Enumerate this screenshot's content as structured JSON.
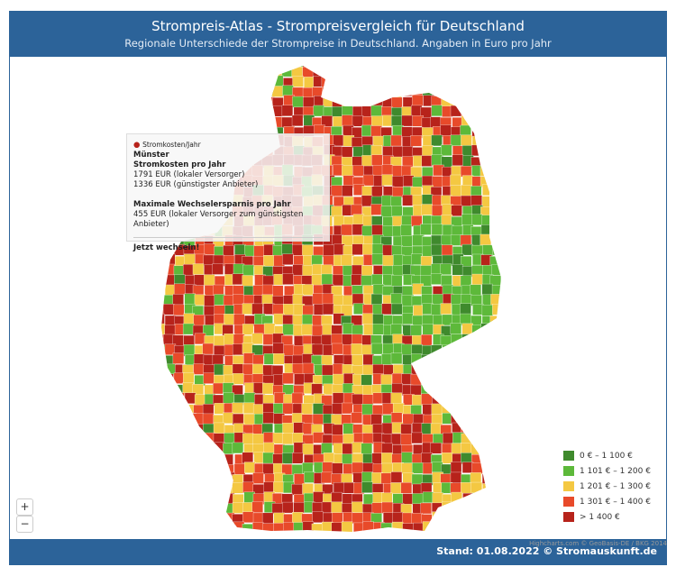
{
  "header": {
    "title": "Strompreis-Atlas - Strompreisvergleich für Deutschland",
    "subtitle": "Regionale Unterschiede der Strompreise in Deutschland. Angaben in Euro pro Jahr"
  },
  "tooltip": {
    "series": "Stromkosten/Jahr",
    "city": "Münster",
    "costs_heading": "Stromkosten pro Jahr",
    "local": "1791 EUR (lokaler Versorger)",
    "cheapest": "1336 EUR (günstigster Anbieter)",
    "savings_heading": "Maximale Wechselersparnis pro Jahr",
    "savings": "455 EUR (lokaler Versorger zum günstigsten Anbieter)",
    "cta": "Jetzt wechseln!"
  },
  "legend": [
    {
      "label": "0 € – 1 100 €",
      "color": "#3f8a2d"
    },
    {
      "label": "1 101 € – 1 200 €",
      "color": "#5db93a"
    },
    {
      "label": "1 201 € – 1 300 €",
      "color": "#f4c842"
    },
    {
      "label": "1 301 € – 1 400 €",
      "color": "#e84a2a"
    },
    {
      "label": "> 1 400 €",
      "color": "#b7231b"
    }
  ],
  "zoom": {
    "in": "+",
    "out": "−"
  },
  "credits": "Highcharts.com © GeoBasis-DE / BKG 2014",
  "footer": "Stand: 01.08.2022 © Stromauskunft.de"
}
